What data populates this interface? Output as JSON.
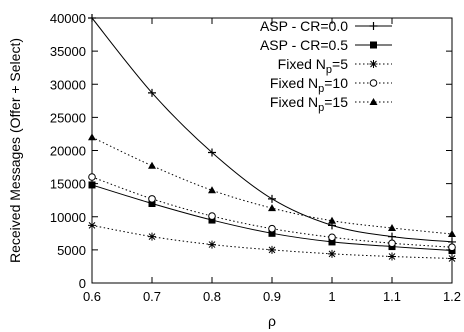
{
  "chart_data": {
    "type": "line",
    "xlabel": "ρ",
    "ylabel": "Received Messages (Offer + Select)",
    "xlim": [
      0.6,
      1.2
    ],
    "ylim": [
      0,
      40000
    ],
    "x_ticks": [
      "0.6",
      "0.7",
      "0.8",
      "0.9",
      "1",
      "1.1",
      "1.2"
    ],
    "y_ticks": [
      "0",
      "5000",
      "10000",
      "15000",
      "20000",
      "25000",
      "30000",
      "35000",
      "40000"
    ],
    "x": [
      0.6,
      0.7,
      0.8,
      0.9,
      1.0,
      1.1,
      1.2
    ],
    "grid": false,
    "legend_position": "top-right",
    "series": [
      {
        "name": "ASP - CR=0.0",
        "legend": {
          "pre": "ASP - CR=0.0",
          "sub": "",
          "post": ""
        },
        "style": "solid",
        "marker": "plus",
        "values": [
          40000,
          28700,
          19700,
          12700,
          8700,
          7000,
          6200
        ]
      },
      {
        "name": "ASP - CR=0.5",
        "legend": {
          "pre": "ASP - CR=0.5",
          "sub": "",
          "post": ""
        },
        "style": "solid",
        "marker": "square",
        "values": [
          14800,
          12000,
          9500,
          7500,
          6200,
          5500,
          4900
        ]
      },
      {
        "name": "Fixed Np=5",
        "legend": {
          "pre": "Fixed N",
          "sub": "p",
          "post": "=5"
        },
        "style": "dotted",
        "marker": "star",
        "values": [
          8700,
          7000,
          5800,
          5000,
          4400,
          4000,
          3700
        ]
      },
      {
        "name": "Fixed Np=10",
        "legend": {
          "pre": "Fixed N",
          "sub": "p",
          "post": "=10"
        },
        "style": "dotted",
        "marker": "circle",
        "values": [
          16000,
          12700,
          10100,
          8200,
          6900,
          6000,
          5400
        ]
      },
      {
        "name": "Fixed Np=15",
        "legend": {
          "pre": "Fixed N",
          "sub": "p",
          "post": "=15"
        },
        "style": "dotted",
        "marker": "triangle",
        "values": [
          22000,
          17700,
          14000,
          11300,
          9400,
          8300,
          7400
        ]
      }
    ]
  }
}
